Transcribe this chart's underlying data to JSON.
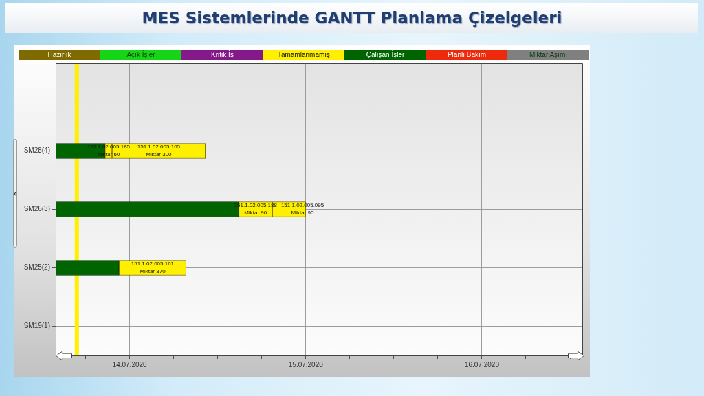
{
  "chart_data": {
    "type": "bar",
    "orientation": "horizontal",
    "title": "MES Sistemlerinde GANTT Planlama Çizelgeleri",
    "categories": [
      null,
      "SM28(4)",
      "SM26(3)",
      "SM25(2)",
      "SM19(1)"
    ],
    "series": [
      {
        "name": "Hazırlık",
        "color": "#7f6a00",
        "values": [
          null,
          null,
          null,
          null,
          null
        ]
      },
      {
        "name": "Açık İşler",
        "color": "#16d416",
        "values": [
          null,
          null,
          null,
          null,
          null
        ]
      },
      {
        "name": "Kritik İş",
        "color": "#84198a",
        "values": [
          null,
          null,
          null,
          null,
          null
        ]
      },
      {
        "name": "Tamamlanmamış",
        "color": "#fff000",
        "values": [
          null,
          0.04,
          0.19,
          0.38,
          null
        ],
        "base": [
          null,
          18456.86,
          18457.62,
          18456.94,
          null
        ],
        "value_labels": [
          null,
          "151.1.02.005.185\nMiktar 60",
          "151.1.02.005.188\nMiktar 90",
          "151.1.02.005.161\nMiktar 370",
          null
        ]
      },
      {
        "name": "Çalışan İşler",
        "color": "#006400",
        "values": [
          null,
          0.28,
          1.04,
          0.36,
          null
        ],
        "base": [
          null,
          18456.58,
          18456.58,
          18456.58,
          null
        ]
      },
      {
        "name": "Planlı Bakım",
        "color": "#ee2a0c",
        "values": [
          null,
          null,
          null,
          null,
          null
        ]
      },
      {
        "name": "Miktar Aşımı",
        "color": "#808080",
        "values": [
          null,
          null,
          null,
          null,
          null
        ]
      },
      {
        "color": "#fff000",
        "values": [
          null,
          0.53,
          0.19,
          null,
          null
        ],
        "base": [
          null,
          18456.9,
          18457.81,
          null,
          null
        ],
        "value_labels": [
          null,
          "151.1.02.005.165\nMiktar 300",
          "151.1.02.005.095\nMiktar 90",
          null,
          null
        ]
      }
    ],
    "xlim": [
      "2020-07-13T13:55",
      "2020-07-16T13:41"
    ],
    "xticks": [
      {
        "value": "2020-07-13T18:00",
        "label": null
      },
      {
        "value": "2020-07-14",
        "label": "14.07.2020"
      },
      {
        "value": "2020-07-14T06:00",
        "label": null
      },
      {
        "value": "2020-07-14T12:00",
        "label": null
      },
      {
        "value": "2020-07-14T18:00",
        "label": null
      },
      {
        "value": "2020-07-15",
        "label": "15.07.2020"
      },
      {
        "value": "2020-07-15T06:00",
        "label": null
      },
      {
        "value": "2020-07-15T12:00",
        "label": null
      },
      {
        "value": "2020-07-15T18:00",
        "label": null
      },
      {
        "value": "2020-07-16",
        "label": "16.07.2020"
      },
      {
        "value": "2020-07-16T06:00",
        "label": null
      },
      {
        "value": "2020-07-16T12:00",
        "label": null
      }
    ],
    "grid": true,
    "legend": "top",
    "ref_lines": [
      {
        "axis": "x",
        "value": "2020-07-13T16:48",
        "color": "#fff000"
      }
    ]
  }
}
